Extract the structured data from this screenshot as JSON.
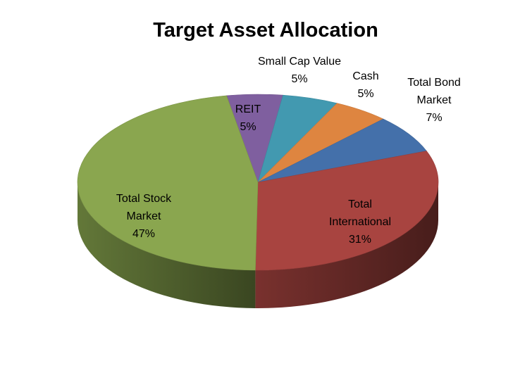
{
  "chart_data": {
    "type": "pie",
    "title": "Target Asset Allocation",
    "slices": [
      {
        "label": "REIT",
        "value": 5,
        "value_label": "5%",
        "color": "#7F5F9F"
      },
      {
        "label": "Small Cap Value",
        "value": 5,
        "value_label": "5%",
        "color": "#4299B0"
      },
      {
        "label": "Cash",
        "value": 5,
        "value_label": "5%",
        "color": "#DE8540"
      },
      {
        "label": "Total Bond Market",
        "value": 7,
        "value_label": "7%",
        "color": "#4470AA"
      },
      {
        "label": "Total International",
        "value": 31,
        "value_label": "31%",
        "color": "#A84440"
      },
      {
        "label": "Total Stock Market",
        "value": 47,
        "value_label": "47%",
        "color": "#8AA64F"
      }
    ],
    "legend": "none",
    "style": "3d-pie"
  }
}
